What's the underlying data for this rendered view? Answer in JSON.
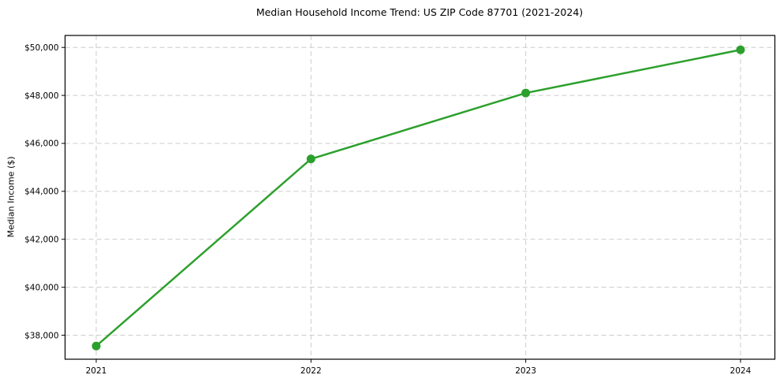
{
  "chart_data": {
    "type": "line",
    "title": "Median Household Income Trend: US ZIP Code 87701 (2021-2024)",
    "xlabel": "",
    "ylabel": "Median Income ($)",
    "x": [
      2021,
      2022,
      2023,
      2024
    ],
    "values": [
      37550,
      45350,
      48100,
      49900
    ],
    "xlim": [
      2020.855,
      2024.16
    ],
    "ylim": [
      37000,
      50500
    ],
    "xticks": {
      "values": [
        2021,
        2022,
        2023,
        2024
      ],
      "labels": [
        "2021",
        "2022",
        "2023",
        "2024"
      ]
    },
    "yticks": {
      "values": [
        38000,
        40000,
        42000,
        44000,
        46000,
        48000,
        50000
      ],
      "labels": [
        "$38,000",
        "$40,000",
        "$42,000",
        "$44,000",
        "$46,000",
        "$48,000",
        "$50,000"
      ]
    },
    "grid": {
      "visible": true,
      "style": "dashed",
      "axis": "both"
    },
    "legend": {
      "visible": false
    },
    "colors": {
      "line": "#2ca02c",
      "marker": "#2ca02c",
      "grid": "#cccccc",
      "frame": "#000000",
      "text": "#000000",
      "background": "#ffffff"
    }
  }
}
